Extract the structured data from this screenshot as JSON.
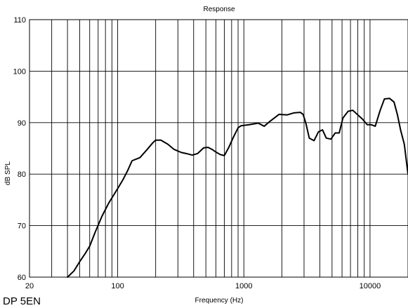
{
  "chart_data": {
    "type": "line",
    "title": "Response",
    "xlabel": "Frequency (Hz)",
    "ylabel": "dB SPL",
    "model": "DP 5EN",
    "xscale": "log",
    "xlim": [
      20,
      20000
    ],
    "ylim": [
      60,
      110
    ],
    "yticks": [
      60,
      70,
      80,
      90,
      100,
      110
    ],
    "xticks": [
      {
        "value": 20,
        "label": "20"
      },
      {
        "value": 100,
        "label": "100"
      },
      {
        "value": 1000,
        "label": "1000"
      },
      {
        "value": 10000,
        "label": "10000"
      }
    ],
    "grid": true,
    "colors": {
      "line": "#000000",
      "grid": "#000000",
      "background": "#ffffff"
    },
    "series": [
      {
        "x": [
          40,
          45,
          50,
          55,
          60,
          66,
          75,
          85,
          100,
          110,
          120,
          130,
          150,
          170,
          190,
          200,
          220,
          250,
          280,
          320,
          350,
          390,
          430,
          480,
          520,
          560,
          600,
          650,
          700,
          760,
          820,
          900,
          950,
          1100,
          1300,
          1450,
          1600,
          1900,
          2200,
          2500,
          2800,
          2950,
          3100,
          3300,
          3600,
          3900,
          4200,
          4500,
          4900,
          5300,
          5700,
          6100,
          6700,
          7300,
          8000,
          8700,
          9500,
          10200,
          11000,
          12000,
          13000,
          14300,
          15500,
          16500,
          17500,
          18700,
          20000
        ],
        "y": [
          60,
          61.2,
          63,
          64.5,
          66,
          68.6,
          71.8,
          74.4,
          77.2,
          78.9,
          80.7,
          82.6,
          83.2,
          84.7,
          86.1,
          86.6,
          86.6,
          85.8,
          84.8,
          84.2,
          84.0,
          83.7,
          84.0,
          85.1,
          85.2,
          84.8,
          84.3,
          83.8,
          83.6,
          85.2,
          87.0,
          89.0,
          89.4,
          89.6,
          89.9,
          89.3,
          90.2,
          91.6,
          91.5,
          91.9,
          92.0,
          91.6,
          89.9,
          87.0,
          86.5,
          88.2,
          88.6,
          87.0,
          86.8,
          88.0,
          88.0,
          90.9,
          92.2,
          92.4,
          91.5,
          90.7,
          89.6,
          89.6,
          89.3,
          92.3,
          94.6,
          94.7,
          94.0,
          91.5,
          88.5,
          85.8,
          80.0
        ]
      }
    ]
  }
}
